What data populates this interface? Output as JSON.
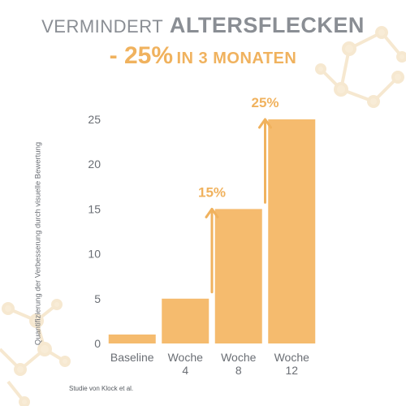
{
  "header": {
    "title_light": "VERMINDERT",
    "title_bold": "ALTERSFLECKEN",
    "subtitle_big": "- 25%",
    "subtitle_small": "IN 3 MONATEN"
  },
  "footnote": "Studie von Klock et al.",
  "colors": {
    "bar": "#f5bb6e",
    "accent": "#f0b25e",
    "text": "#6a6e74",
    "title_gray": "#8a8e94"
  },
  "chart_data": {
    "type": "bar",
    "categories": [
      [
        "Baseline"
      ],
      [
        "Woche",
        "4"
      ],
      [
        "Woche",
        "8"
      ],
      [
        "Woche",
        "12"
      ]
    ],
    "values": [
      1,
      5,
      15,
      25
    ],
    "ylabel": "Quantifizierung der Verbesserung durch visuelle Bewertung",
    "xlabel": "",
    "ylim": [
      0,
      25
    ],
    "yticks": [
      0,
      5,
      10,
      15,
      20,
      25
    ],
    "grid": false,
    "annotations": [
      {
        "label": "15%",
        "from_category": 1,
        "to_value": 15
      },
      {
        "label": "25%",
        "from_category": 2,
        "to_value": 25
      }
    ]
  }
}
